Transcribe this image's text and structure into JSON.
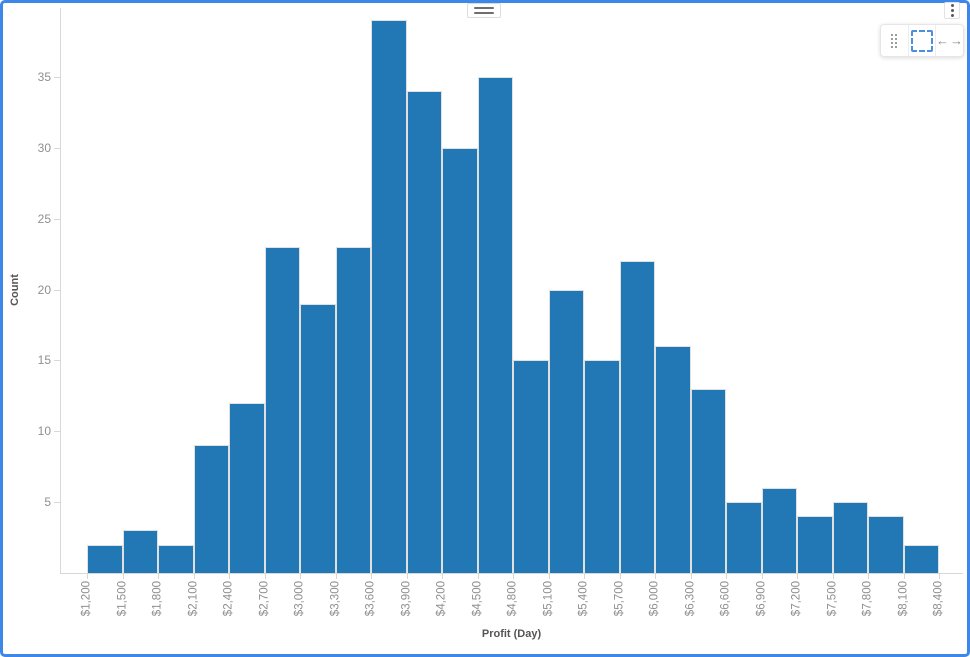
{
  "widget": {
    "accent_color": "#3d87e8",
    "icons": {
      "kebab": "kebab-menu",
      "drag_handle": "drag-grip",
      "arrow_left": "←",
      "arrow_right": "→"
    }
  },
  "chart_data": {
    "type": "bar",
    "subtype": "histogram",
    "title": "",
    "xlabel": "Profit (Day)",
    "ylabel": "Count",
    "bin_edge_labels": [
      "$1,200",
      "$1,500",
      "$1,800",
      "$2,100",
      "$2,400",
      "$2,700",
      "$3,000",
      "$3,300",
      "$3,600",
      "$3,900",
      "$4,200",
      "$4,500",
      "$4,800",
      "$5,100",
      "$5,400",
      "$5,700",
      "$6,000",
      "$6,300",
      "$6,600",
      "$6,900",
      "$7,200",
      "$7,500",
      "$7,800",
      "$8,100",
      "$8,400"
    ],
    "bin_edges": [
      1200,
      1500,
      1800,
      2100,
      2400,
      2700,
      3000,
      3300,
      3600,
      3900,
      4200,
      4500,
      4800,
      5100,
      5400,
      5700,
      6000,
      6300,
      6600,
      6900,
      7200,
      7500,
      7800,
      8100,
      8400
    ],
    "bin_width": 300,
    "values": [
      2,
      3,
      2,
      9,
      12,
      23,
      19,
      23,
      39,
      34,
      30,
      35,
      15,
      20,
      15,
      22,
      16,
      13,
      5,
      6,
      4,
      5,
      4,
      2
    ],
    "yticks": [
      5,
      10,
      15,
      20,
      25,
      30,
      35
    ],
    "ylim": [
      0,
      40
    ],
    "grid": false,
    "legend": "none",
    "bar_color": "#2278b5",
    "bar_border_color": "#e0e0e0",
    "axis_line_color": "#d8d8d8",
    "tick_label_color": "#8f8f8f",
    "axis_title_color": "#555555"
  }
}
